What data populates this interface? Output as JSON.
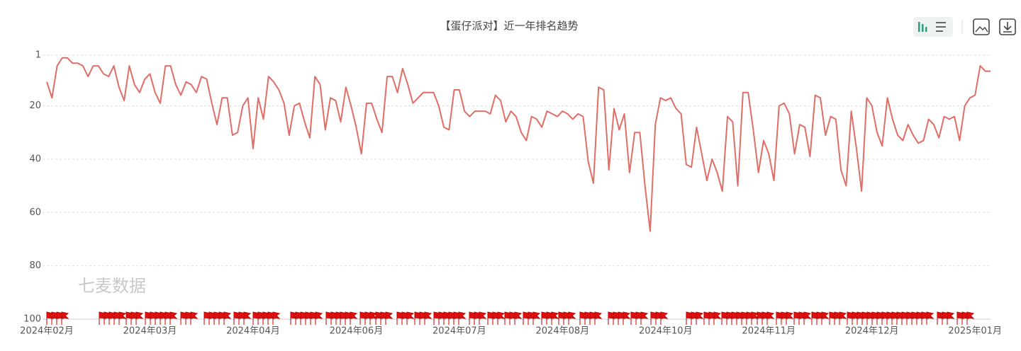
{
  "chart_data": {
    "type": "line",
    "title": "【蛋仔派对】近一年排名趋势",
    "watermark": "七麦数据",
    "y_inverted": true,
    "grid": true,
    "ylim": [
      1,
      100
    ],
    "yticks": [
      1,
      20,
      40,
      60,
      80,
      100
    ],
    "color": "#e06d66",
    "categories": [
      "2024年02月",
      null,
      null,
      null,
      null,
      null,
      null,
      null,
      null,
      null,
      null,
      null,
      null,
      null,
      null,
      null,
      null,
      null,
      null,
      null,
      "2024年03月",
      null,
      null,
      null,
      null,
      null,
      null,
      null,
      null,
      null,
      null,
      null,
      null,
      null,
      null,
      null,
      null,
      null,
      null,
      null,
      "2024年04月",
      null,
      null,
      null,
      null,
      null,
      null,
      null,
      null,
      null,
      null,
      null,
      null,
      null,
      null,
      null,
      null,
      null,
      null,
      null,
      "2024年06月",
      null,
      null,
      null,
      null,
      null,
      null,
      null,
      null,
      null,
      null,
      null,
      null,
      null,
      null,
      null,
      null,
      null,
      null,
      null,
      "2024年07月",
      null,
      null,
      null,
      null,
      null,
      null,
      null,
      null,
      null,
      null,
      null,
      null,
      null,
      null,
      null,
      null,
      null,
      null,
      null,
      "2024年08月",
      null,
      null,
      null,
      null,
      null,
      null,
      null,
      null,
      null,
      null,
      null,
      null,
      null,
      null,
      null,
      null,
      null,
      null,
      null,
      "2024年10月",
      null,
      null,
      null,
      null,
      null,
      null,
      null,
      null,
      null,
      null,
      null,
      null,
      null,
      null,
      null,
      null,
      null,
      null,
      null,
      "2024年11月",
      null,
      null,
      null,
      null,
      null,
      null,
      null,
      null,
      null,
      null,
      null,
      null,
      null,
      null,
      null,
      null,
      null,
      null,
      null,
      "2024年12月",
      null,
      null,
      null,
      null,
      null,
      null,
      null,
      null,
      null,
      null,
      null,
      null,
      null,
      null,
      null,
      null,
      null,
      null,
      null,
      "2025年01月",
      null,
      null,
      null
    ],
    "values": [
      11,
      17,
      5,
      2,
      2,
      4,
      4,
      5,
      9,
      5,
      5,
      8,
      9,
      5,
      13,
      18,
      5,
      12,
      15,
      10,
      8,
      15,
      19,
      5,
      5,
      12,
      16,
      11,
      12,
      15,
      9,
      10,
      19,
      27,
      17,
      17,
      31,
      30,
      20,
      17,
      36,
      17,
      25,
      9,
      11,
      14,
      19,
      31,
      20,
      19,
      26,
      32,
      9,
      12,
      29,
      17,
      18,
      26,
      13,
      20,
      28,
      38,
      19,
      19,
      25,
      30,
      9,
      9,
      15,
      6,
      12,
      19,
      17,
      15,
      15,
      15,
      20,
      28,
      29,
      14,
      14,
      22,
      24,
      22,
      22,
      22,
      23,
      16,
      18,
      26,
      22,
      24,
      30,
      33,
      24,
      25,
      28,
      22,
      23,
      24,
      22,
      23,
      25,
      23,
      24,
      41,
      49,
      13,
      14,
      44,
      21,
      29,
      23,
      45,
      30,
      30,
      50,
      67,
      27,
      17,
      18,
      17,
      21,
      23,
      42,
      43,
      28,
      38,
      48,
      40,
      45,
      52,
      24,
      26,
      50,
      15,
      15,
      29,
      45,
      33,
      38,
      48,
      20,
      19,
      23,
      38,
      27,
      28,
      39,
      16,
      17,
      31,
      24,
      25,
      44,
      50,
      22,
      36,
      52,
      17,
      20,
      30,
      35,
      17,
      25,
      31,
      33,
      27,
      31,
      34,
      33,
      25,
      27,
      32,
      24,
      25,
      24,
      33,
      20,
      17,
      16,
      5,
      7,
      7
    ]
  }
}
